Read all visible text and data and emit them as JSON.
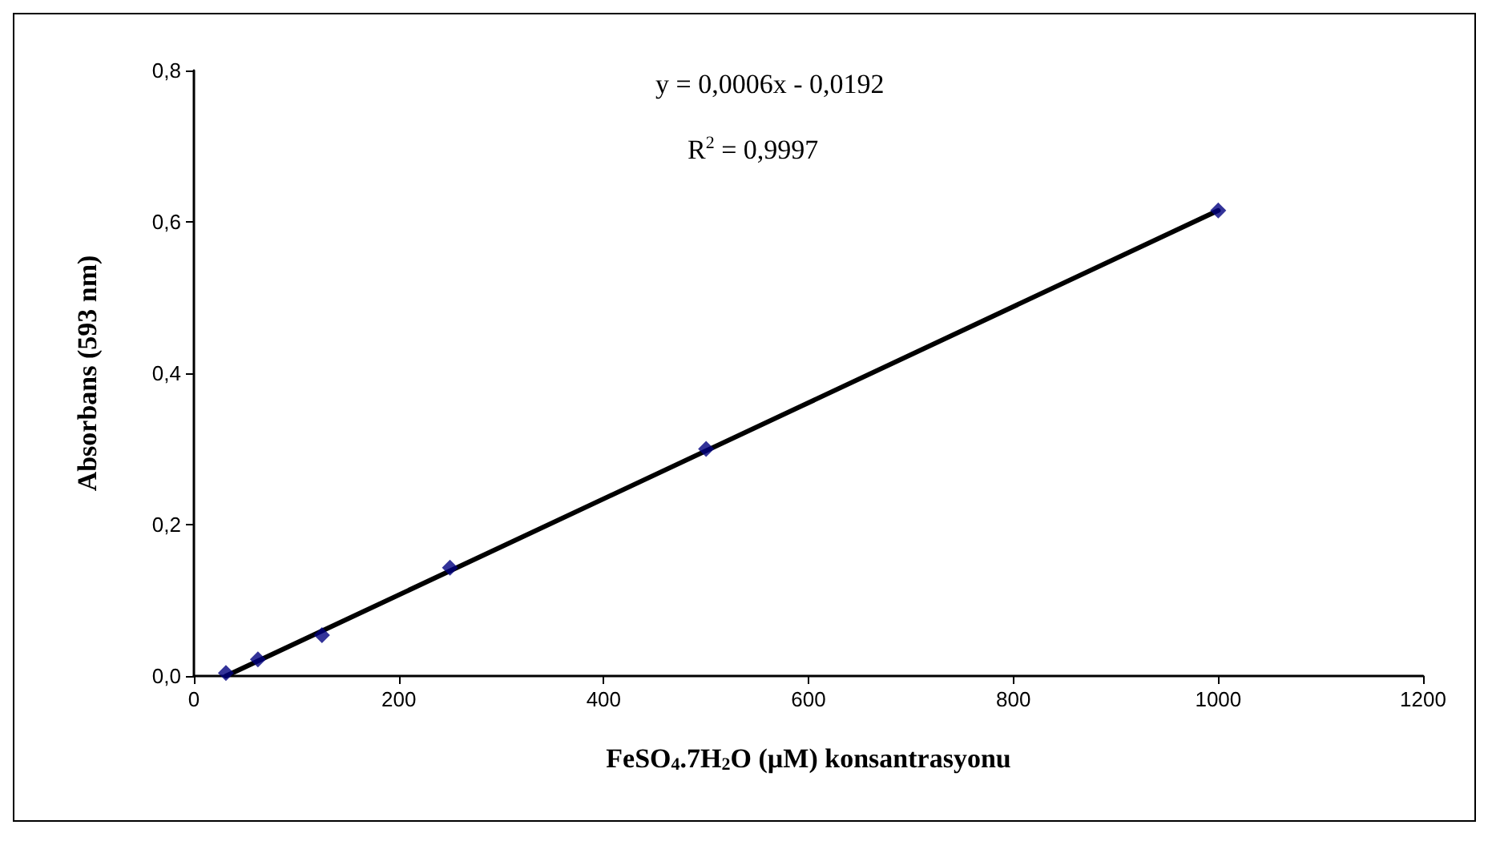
{
  "chart_data": {
    "type": "scatter",
    "xlabel": "FeSO$_{4}$.7H$_{2}$O (µM) konsantrasyonu",
    "ylabel": "Absorbans (593 nm)",
    "annotations": [
      "y = 0,0006x - 0,0192",
      "R$^{2}$ = 0,9997"
    ],
    "series": [
      {
        "color": "#000080",
        "marker": "diamond",
        "x": [
          31.25,
          62.5,
          125,
          250,
          500,
          1000
        ],
        "values": [
          0.004,
          0.022,
          0.054,
          0.143,
          0.3,
          0.615
        ]
      },
      {
        "type": "line",
        "color": "#000000",
        "line_style": "solid",
        "marker": "none",
        "x": [
          31.25,
          1000
        ],
        "values": [
          0.0,
          0.615
        ]
      }
    ],
    "xlim": [
      0,
      1200
    ],
    "xticks": [
      0,
      200,
      400,
      600,
      800,
      1000,
      1200
    ],
    "ylim": [
      0,
      0.8
    ],
    "yticks": [
      {
        "value": 0,
        "label": "0,0"
      },
      {
        "value": 0.2,
        "label": "0,2"
      },
      {
        "value": 0.4,
        "label": "0,4"
      },
      {
        "value": 0.6,
        "label": "0,6"
      },
      {
        "value": 0.8,
        "label": "0,8"
      }
    ],
    "grid": false
  }
}
